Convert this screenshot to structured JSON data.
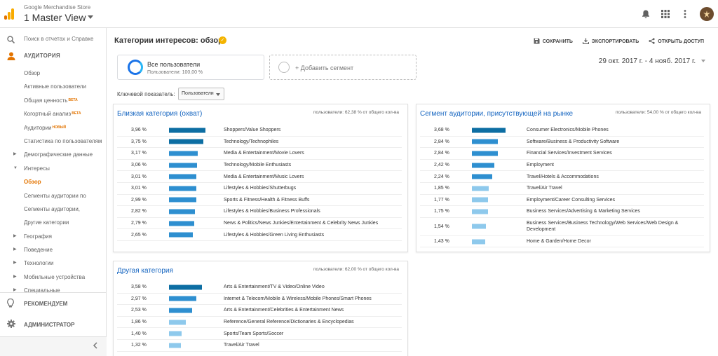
{
  "header": {
    "account": "Google Merchandise Store",
    "view": "1 Master View"
  },
  "colors": {
    "brand_orange": "#f9ab00",
    "bar_dark": "#0d6ea3",
    "bar_mid": "#2e8fd0",
    "bar_light": "#8ec9ec"
  },
  "sidebar": {
    "search_placeholder": "Поиск в отчетах и Справке",
    "section_audience": "АУДИТОРИЯ",
    "items": [
      {
        "label": "Обзор",
        "type": "sub"
      },
      {
        "label": "Активные пользователи",
        "type": "sub"
      },
      {
        "label": "Общая ценность",
        "badge": "BETA",
        "type": "sub"
      },
      {
        "label": "Когортный анализ",
        "badge": "BETA",
        "type": "sub"
      },
      {
        "label": "Аудитории",
        "badge": "НОВЫЙ",
        "type": "sub"
      },
      {
        "label": "Статистика по пользователям",
        "type": "sub"
      },
      {
        "label": "Демографические данные",
        "type": "collapsed"
      },
      {
        "label": "Интересы",
        "type": "expanded"
      },
      {
        "label": "Обзор",
        "type": "active"
      },
      {
        "label": "Сегменты аудитории по",
        "type": "sub"
      },
      {
        "label": "Сегменты аудитории,",
        "type": "sub"
      },
      {
        "label": "Другие категории",
        "type": "sub"
      },
      {
        "label": "География",
        "type": "collapsed"
      },
      {
        "label": "Поведение",
        "type": "collapsed"
      },
      {
        "label": "Технологии",
        "type": "collapsed"
      },
      {
        "label": "Мобильные устройства",
        "type": "collapsed"
      },
      {
        "label": "Специальные",
        "type": "collapsed"
      }
    ],
    "section_recommend": "РЕКОМЕНДУЕМ",
    "section_admin": "АДМИНИСТРАТОР"
  },
  "main": {
    "title": "Категории интересов: обзор",
    "actions": [
      {
        "label": "СОХРАНИТЬ",
        "icon": "save-icon"
      },
      {
        "label": "ЭКСПОРТИРОВАТЬ",
        "icon": "export-icon"
      },
      {
        "label": "ОТКРЫТЬ ДОСТУП",
        "icon": "share-icon"
      }
    ],
    "segment": {
      "name": "Все пользователи",
      "sub": "Пользователи: 100,00 %"
    },
    "add_segment": "+ Добавить сегмент",
    "date_range": "29 окт. 2017 г. - 4 нояб. 2017 г.",
    "kpi_label": "Ключевой показатель:",
    "kpi_value": "Пользователи"
  },
  "cards": [
    {
      "title": "Близкая категория (охват)",
      "info": "пользователи: 62,38 % от общего кол-ва",
      "rows": [
        {
          "value": "3,96 %",
          "pct": 3.96,
          "label": "Shoppers/Value Shoppers"
        },
        {
          "value": "3,75 %",
          "pct": 3.75,
          "label": "Technology/Technophiles"
        },
        {
          "value": "3,17 %",
          "pct": 3.17,
          "label": "Media & Entertainment/Movie Lovers"
        },
        {
          "value": "3,06 %",
          "pct": 3.06,
          "label": "Technology/Mobile Enthusiasts"
        },
        {
          "value": "3,01 %",
          "pct": 3.01,
          "label": "Media & Entertainment/Music Lovers"
        },
        {
          "value": "3,01 %",
          "pct": 3.01,
          "label": "Lifestyles & Hobbies/Shutterbugs"
        },
        {
          "value": "2,99 %",
          "pct": 2.99,
          "label": "Sports & Fitness/Health & Fitness Buffs"
        },
        {
          "value": "2,82 %",
          "pct": 2.82,
          "label": "Lifestyles & Hobbies/Business Professionals"
        },
        {
          "value": "2,79 %",
          "pct": 2.79,
          "label": "News & Politics/News Junkies/Entertainment & Celebrity News Junkies"
        },
        {
          "value": "2,65 %",
          "pct": 2.65,
          "label": "Lifestyles & Hobbies/Green Living Enthusiasts"
        }
      ]
    },
    {
      "title": "Сегмент аудитории, присутствующей на рынке",
      "info": "пользователи: 54,00 % от общего кол-ва",
      "rows": [
        {
          "value": "3,68 %",
          "pct": 3.68,
          "label": "Consumer Electronics/Mobile Phones"
        },
        {
          "value": "2,84 %",
          "pct": 2.84,
          "label": "Software/Business & Productivity Software"
        },
        {
          "value": "2,84 %",
          "pct": 2.84,
          "label": "Financial Services/Investment Services"
        },
        {
          "value": "2,42 %",
          "pct": 2.42,
          "label": "Employment"
        },
        {
          "value": "2,24 %",
          "pct": 2.24,
          "label": "Travel/Hotels & Accommodations"
        },
        {
          "value": "1,85 %",
          "pct": 1.85,
          "label": "Travel/Air Travel"
        },
        {
          "value": "1,77 %",
          "pct": 1.77,
          "label": "Employment/Career Consulting Services"
        },
        {
          "value": "1,75 %",
          "pct": 1.75,
          "label": "Business Services/Advertising & Marketing Services"
        },
        {
          "value": "1,54 %",
          "pct": 1.54,
          "label": "Business Services/Business Technology/Web Services/Web Design & Development",
          "tall": true
        },
        {
          "value": "1,43 %",
          "pct": 1.43,
          "label": "Home & Garden/Home Decor"
        }
      ]
    },
    {
      "title": "Другая категория",
      "info": "пользователи: 62,00 % от общего кол-ва",
      "rows": [
        {
          "value": "3,58 %",
          "pct": 3.58,
          "label": "Arts & Entertainment/TV & Video/Online Video"
        },
        {
          "value": "2,97 %",
          "pct": 2.97,
          "label": "Internet & Telecom/Mobile & Wireless/Mobile Phones/Smart Phones"
        },
        {
          "value": "2,53 %",
          "pct": 2.53,
          "label": "Arts & Entertainment/Celebrities & Entertainment News"
        },
        {
          "value": "1,86 %",
          "pct": 1.86,
          "label": "Reference/General Reference/Dictionaries & Encyclopedias"
        },
        {
          "value": "1,40 %",
          "pct": 1.4,
          "label": "Sports/Team Sports/Soccer"
        },
        {
          "value": "1,32 %",
          "pct": 1.32,
          "label": "Travel/Air Travel"
        }
      ]
    }
  ]
}
